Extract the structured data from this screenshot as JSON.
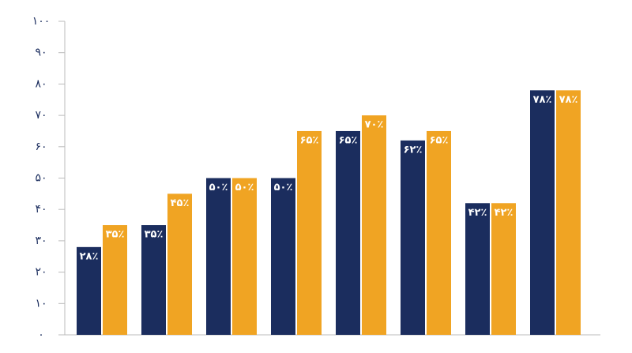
{
  "chart_data": {
    "type": "bar",
    "categories": [
      null,
      null,
      null,
      null,
      null,
      null,
      null,
      null
    ],
    "series": [
      {
        "color": "#1b2d5e",
        "values": [
          28,
          35,
          50,
          50,
          65,
          62,
          42,
          78
        ],
        "value_labels": [
          "۲۸٪",
          "۳۵٪",
          "۵۰٪",
          "۵۰٪",
          "۶۵٪",
          "۶۲٪",
          "۴۲٪",
          "۷۸٪"
        ]
      },
      {
        "color": "#f0a423",
        "values": [
          35,
          45,
          50,
          65,
          70,
          65,
          42,
          78
        ],
        "value_labels": [
          "۳۵٪",
          "۴۵٪",
          "۵۰٪",
          "۶۵٪",
          "۷۰٪",
          "۶۵٪",
          "۴۲٪",
          "۷۸٪"
        ]
      }
    ],
    "ylim": [
      0,
      100
    ],
    "yticks": [
      {
        "value": 0,
        "label": "۰"
      },
      {
        "value": 10,
        "label": "۱۰"
      },
      {
        "value": 20,
        "label": "۲۰"
      },
      {
        "value": 30,
        "label": "۳۰"
      },
      {
        "value": 40,
        "label": "۴۰"
      },
      {
        "value": 50,
        "label": "۵۰"
      },
      {
        "value": 60,
        "label": "۶۰"
      },
      {
        "value": 70,
        "label": "۷۰"
      },
      {
        "value": 80,
        "label": "۸۰"
      },
      {
        "value": 90,
        "label": "۹۰"
      },
      {
        "value": 100,
        "label": "۱۰۰"
      }
    ],
    "grid": false
  }
}
